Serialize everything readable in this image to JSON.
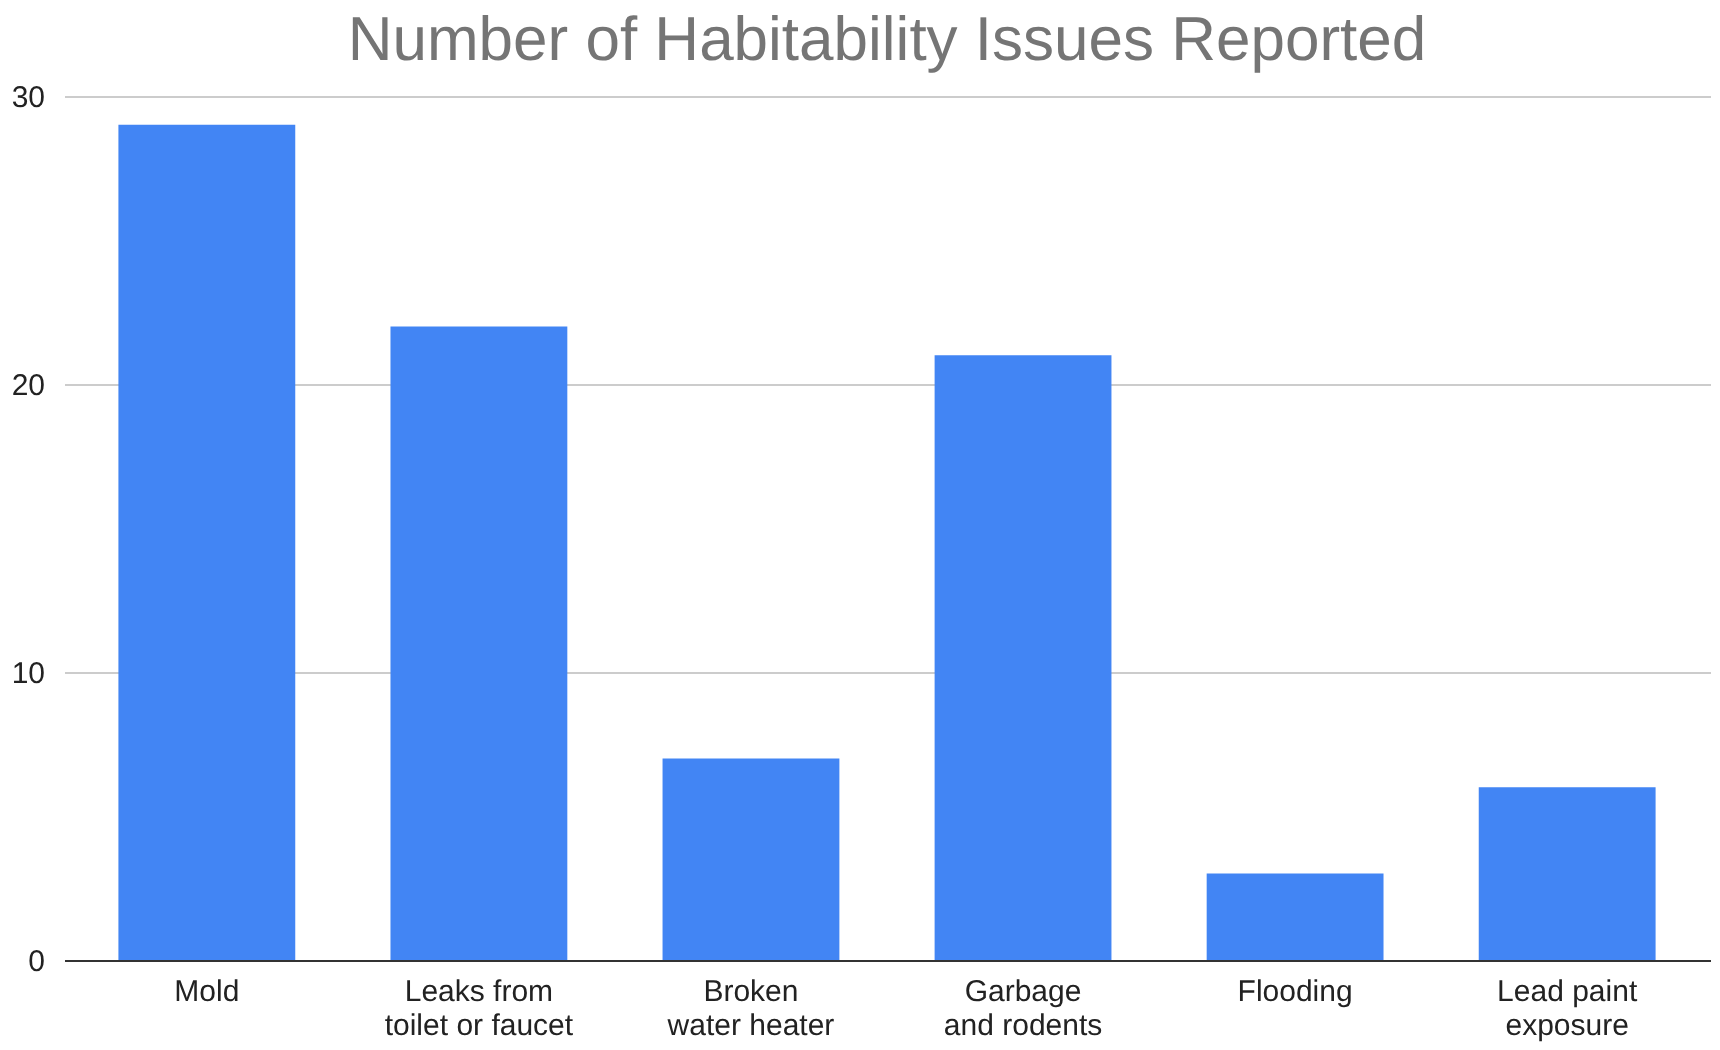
{
  "chart_data": {
    "type": "bar",
    "title": "Number of Habitability Issues Reported",
    "categories": [
      "Mold",
      "Leaks from toilet or faucet",
      "Broken water heater",
      "Garbage and rodents",
      "Flooding",
      "Lead paint exposure"
    ],
    "values": [
      29,
      22,
      7,
      21,
      3,
      6
    ],
    "color": "#4285f4",
    "ylim": [
      0,
      30
    ],
    "yticks": [
      0,
      10,
      20,
      30
    ],
    "grid": "y"
  }
}
